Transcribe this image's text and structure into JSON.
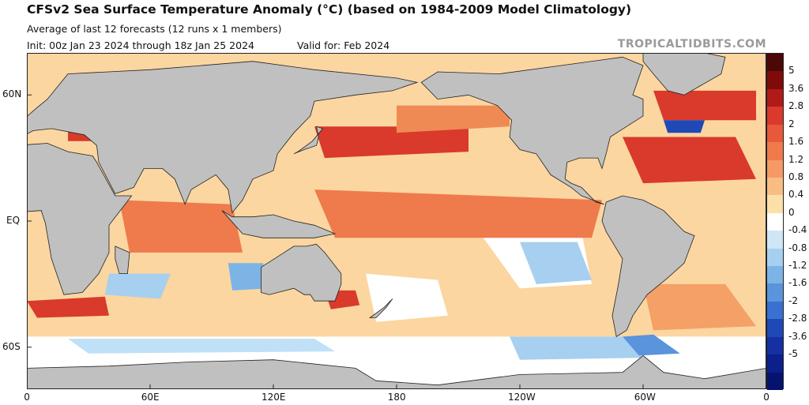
{
  "header": {
    "title": "CFSv2 Sea Surface Temperature Anomaly (°C) (based on 1984-2009 Model Climatology)",
    "subtitle_1": "Average of last 12 forecasts (12 runs x 1 members)",
    "subtitle_2": "Init: 00z Jan 23 2024 through 18z Jan 25 2024",
    "valid": "Valid for: Feb 2024",
    "source": "TROPICALTIDBITS.COM"
  },
  "map": {
    "projection": "equirectangular",
    "lon_range": [
      0,
      360
    ],
    "lat_range": [
      -80,
      80
    ],
    "land_color": "#c0c0c0",
    "border_color": "#222222",
    "lat_labels": [
      {
        "text": "60N",
        "lat": 60
      },
      {
        "text": "EQ",
        "lat": 0
      },
      {
        "text": "60S",
        "lat": -60
      }
    ],
    "lon_labels": [
      {
        "text": "0",
        "lon": 0
      },
      {
        "text": "60E",
        "lon": 60
      },
      {
        "text": "120E",
        "lon": 120
      },
      {
        "text": "180",
        "lon": 180
      },
      {
        "text": "120W",
        "lon": 240
      },
      {
        "text": "60W",
        "lon": 300
      },
      {
        "text": "0",
        "lon": 360
      }
    ]
  },
  "colorbar": {
    "labels": [
      "5",
      "3.6",
      "2.8",
      "2",
      "1.6",
      "1.2",
      "0.8",
      "0.4",
      "0",
      "-0.4",
      "-0.8",
      "-1.2",
      "-1.6",
      "-2",
      "-2.8",
      "-3.6",
      "-5"
    ],
    "colors": [
      "#4a0806",
      "#7e0b0a",
      "#b21a17",
      "#d93a2b",
      "#e8583a",
      "#ef7a4c",
      "#f59a64",
      "#f9bd82",
      "#fde0a8",
      "#ffffff",
      "#cfe6f7",
      "#a7cff0",
      "#7db4e6",
      "#5a94dc",
      "#3a70cf",
      "#2049b8",
      "#1530a0",
      "#0c1f8a",
      "#06136e"
    ]
  },
  "features": [
    {
      "name": "ocean-background",
      "type": "rect",
      "lon0": 0,
      "lat0": 80,
      "lon1": 360,
      "lat1": -80,
      "color": "#fbd6a0"
    },
    {
      "name": "anomaly-south-white-band",
      "type": "poly",
      "color": "#ffffff",
      "coords": [
        [
          0,
          -55
        ],
        [
          360,
          -55
        ],
        [
          360,
          -80
        ],
        [
          0,
          -80
        ]
      ]
    },
    {
      "name": "anomaly-south-lightblue",
      "type": "poly",
      "color": "#bfe0f7",
      "coords": [
        [
          20,
          -56
        ],
        [
          140,
          -56
        ],
        [
          150,
          -62
        ],
        [
          30,
          -63
        ]
      ]
    },
    {
      "name": "anomaly-south-pacific-blue",
      "type": "poly",
      "color": "#a7cff0",
      "coords": [
        [
          235,
          -55
        ],
        [
          290,
          -55
        ],
        [
          300,
          -65
        ],
        [
          240,
          -66
        ]
      ]
    },
    {
      "name": "anomaly-drake-blue",
      "type": "poly",
      "color": "#5a94dc",
      "coords": [
        [
          290,
          -55
        ],
        [
          305,
          -54
        ],
        [
          318,
          -63
        ],
        [
          298,
          -64
        ]
      ]
    },
    {
      "name": "anomaly-s-atlantic-orange",
      "type": "poly",
      "color": "#f4a066",
      "coords": [
        [
          300,
          -30
        ],
        [
          340,
          -30
        ],
        [
          355,
          -50
        ],
        [
          305,
          -52
        ]
      ]
    },
    {
      "name": "anomaly-s-indian-blue",
      "type": "poly",
      "color": "#a7cff0",
      "coords": [
        [
          40,
          -25
        ],
        [
          70,
          -25
        ],
        [
          65,
          -37
        ],
        [
          38,
          -35
        ]
      ]
    },
    {
      "name": "anomaly-agulhas-red",
      "type": "poly",
      "color": "#d93a2b",
      "coords": [
        [
          0,
          -38
        ],
        [
          38,
          -36
        ],
        [
          40,
          -45
        ],
        [
          5,
          -46
        ]
      ]
    },
    {
      "name": "anomaly-sw-pacific-white",
      "type": "poly",
      "color": "#ffffff",
      "coords": [
        [
          165,
          -25
        ],
        [
          200,
          -28
        ],
        [
          205,
          -45
        ],
        [
          170,
          -48
        ]
      ]
    },
    {
      "name": "anomaly-se-pacific-white",
      "type": "poly",
      "color": "#ffffff",
      "coords": [
        [
          220,
          -5
        ],
        [
          270,
          -5
        ],
        [
          275,
          -30
        ],
        [
          240,
          -32
        ]
      ]
    },
    {
      "name": "anomaly-se-pacific-lightblue",
      "type": "poly",
      "color": "#a7cff0",
      "coords": [
        [
          240,
          -10
        ],
        [
          268,
          -10
        ],
        [
          275,
          -28
        ],
        [
          248,
          -30
        ]
      ]
    },
    {
      "name": "anomaly-sw-aus-blue",
      "type": "poly",
      "color": "#7db4e6",
      "coords": [
        [
          98,
          -20
        ],
        [
          115,
          -20
        ],
        [
          118,
          -32
        ],
        [
          100,
          -33
        ]
      ]
    },
    {
      "name": "anomaly-tasman-red",
      "type": "poly",
      "color": "#d93a2b",
      "coords": [
        [
          145,
          -33
        ],
        [
          160,
          -33
        ],
        [
          162,
          -40
        ],
        [
          148,
          -42
        ]
      ]
    },
    {
      "name": "anomaly-nino-band",
      "type": "poly",
      "color": "#e8583a",
      "coords": [
        [
          155,
          5
        ],
        [
          275,
          3
        ],
        [
          275,
          -2
        ],
        [
          160,
          -2
        ]
      ]
    },
    {
      "name": "anomaly-trop-pacific-warm",
      "type": "poly",
      "color": "#ef7a4c",
      "coords": [
        [
          140,
          15
        ],
        [
          280,
          10
        ],
        [
          275,
          -8
        ],
        [
          150,
          -8
        ]
      ]
    },
    {
      "name": "anomaly-indian-warm",
      "type": "poly",
      "color": "#ef7a4c",
      "coords": [
        [
          45,
          10
        ],
        [
          100,
          8
        ],
        [
          105,
          -15
        ],
        [
          50,
          -15
        ]
      ]
    },
    {
      "name": "anomaly-kuroshio-red",
      "type": "poly",
      "color": "#d93a2b",
      "coords": [
        [
          140,
          45
        ],
        [
          215,
          45
        ],
        [
          215,
          33
        ],
        [
          145,
          30
        ]
      ]
    },
    {
      "name": "anomaly-n-pacific-orange",
      "type": "poly",
      "color": "#f08a55",
      "coords": [
        [
          180,
          55
        ],
        [
          235,
          55
        ],
        [
          235,
          45
        ],
        [
          180,
          42
        ]
      ]
    },
    {
      "name": "anomaly-n-atlantic-red",
      "type": "poly",
      "color": "#d93a2b",
      "coords": [
        [
          290,
          40
        ],
        [
          345,
          40
        ],
        [
          355,
          20
        ],
        [
          300,
          18
        ]
      ]
    },
    {
      "name": "anomaly-subpolar-red",
      "type": "poly",
      "color": "#d93a2b",
      "coords": [
        [
          305,
          62
        ],
        [
          355,
          62
        ],
        [
          355,
          48
        ],
        [
          310,
          48
        ]
      ]
    },
    {
      "name": "anomaly-nw-atlantic-blue",
      "type": "poly",
      "color": "#2049b8",
      "coords": [
        [
          310,
          48
        ],
        [
          330,
          48
        ],
        [
          328,
          42
        ],
        [
          312,
          42
        ]
      ]
    },
    {
      "name": "anomaly-med-red",
      "type": "poly",
      "color": "#d93a2b",
      "coords": [
        [
          20,
          46
        ],
        [
          45,
          46
        ],
        [
          45,
          38
        ],
        [
          20,
          38
        ]
      ]
    },
    {
      "name": "land-antarctica",
      "type": "poly",
      "color": "#c0c0c0",
      "coords": [
        [
          0,
          -70
        ],
        [
          40,
          -69
        ],
        [
          80,
          -67
        ],
        [
          120,
          -66
        ],
        [
          160,
          -70
        ],
        [
          170,
          -76
        ],
        [
          200,
          -78
        ],
        [
          240,
          -73
        ],
        [
          290,
          -72
        ],
        [
          300,
          -64
        ],
        [
          310,
          -72
        ],
        [
          330,
          -75
        ],
        [
          360,
          -70
        ],
        [
          360,
          -80
        ],
        [
          0,
          -80
        ]
      ]
    },
    {
      "name": "land-africa",
      "type": "poly",
      "color": "#c0c0c0",
      "coords": [
        [
          -17,
          15
        ],
        [
          -10,
          27
        ],
        [
          -5,
          36
        ],
        [
          10,
          37
        ],
        [
          20,
          33
        ],
        [
          32,
          31
        ],
        [
          34,
          28
        ],
        [
          43,
          12
        ],
        [
          51,
          12
        ],
        [
          40,
          -2
        ],
        [
          40,
          -15
        ],
        [
          35,
          -25
        ],
        [
          27,
          -34
        ],
        [
          18,
          -35
        ],
        [
          12,
          -18
        ],
        [
          9,
          -1
        ],
        [
          7,
          5
        ],
        [
          -8,
          4
        ],
        [
          -17,
          15
        ]
      ]
    },
    {
      "name": "land-eurasia",
      "type": "poly",
      "color": "#c0c0c0",
      "coords": [
        [
          -10,
          36
        ],
        [
          -9,
          44
        ],
        [
          -2,
          48
        ],
        [
          5,
          54
        ],
        [
          10,
          58
        ],
        [
          20,
          70
        ],
        [
          60,
          72
        ],
        [
          110,
          76
        ],
        [
          140,
          72
        ],
        [
          180,
          68
        ],
        [
          190,
          66
        ],
        [
          178,
          62
        ],
        [
          160,
          60
        ],
        [
          140,
          57
        ],
        [
          138,
          50
        ],
        [
          130,
          42
        ],
        [
          122,
          32
        ],
        [
          120,
          24
        ],
        [
          110,
          20
        ],
        [
          105,
          10
        ],
        [
          100,
          4
        ],
        [
          98,
          15
        ],
        [
          92,
          22
        ],
        [
          80,
          15
        ],
        [
          77,
          8
        ],
        [
          72,
          20
        ],
        [
          66,
          25
        ],
        [
          57,
          25
        ],
        [
          52,
          16
        ],
        [
          43,
          13
        ],
        [
          35,
          28
        ],
        [
          34,
          36
        ],
        [
          28,
          41
        ],
        [
          12,
          44
        ],
        [
          3,
          43
        ],
        [
          -10,
          36
        ]
      ]
    },
    {
      "name": "land-japan",
      "type": "poly",
      "color": "#c0c0c0",
      "coords": [
        [
          130,
          32
        ],
        [
          135,
          34
        ],
        [
          141,
          36
        ],
        [
          142,
          40
        ],
        [
          141,
          45
        ],
        [
          144,
          44
        ],
        [
          139,
          38
        ],
        [
          132,
          33
        ]
      ]
    },
    {
      "name": "land-australia",
      "type": "poly",
      "color": "#c0c0c0",
      "coords": [
        [
          114,
          -22
        ],
        [
          114,
          -34
        ],
        [
          118,
          -35
        ],
        [
          130,
          -32
        ],
        [
          135,
          -35
        ],
        [
          138,
          -35
        ],
        [
          140,
          -38
        ],
        [
          150,
          -38
        ],
        [
          153,
          -30
        ],
        [
          153,
          -25
        ],
        [
          145,
          -15
        ],
        [
          141,
          -11
        ],
        [
          136,
          -12
        ],
        [
          130,
          -12
        ],
        [
          122,
          -17
        ],
        [
          114,
          -22
        ]
      ]
    },
    {
      "name": "land-north-america",
      "type": "poly",
      "color": "#c0c0c0",
      "coords": [
        [
          192,
          66
        ],
        [
          200,
          71
        ],
        [
          230,
          70
        ],
        [
          260,
          74
        ],
        [
          290,
          78
        ],
        [
          300,
          74
        ],
        [
          295,
          60
        ],
        [
          300,
          58
        ],
        [
          300,
          50
        ],
        [
          292,
          45
        ],
        [
          284,
          40
        ],
        [
          282,
          32
        ],
        [
          280,
          25
        ],
        [
          278,
          30
        ],
        [
          269,
          30
        ],
        [
          263,
          28
        ],
        [
          262,
          20
        ],
        [
          265,
          18
        ],
        [
          270,
          16
        ],
        [
          277,
          9
        ],
        [
          281,
          8
        ],
        [
          270,
          12
        ],
        [
          265,
          16
        ],
        [
          255,
          22
        ],
        [
          248,
          32
        ],
        [
          240,
          34
        ],
        [
          235,
          40
        ],
        [
          236,
          48
        ],
        [
          229,
          55
        ],
        [
          215,
          60
        ],
        [
          200,
          58
        ],
        [
          192,
          66
        ]
      ]
    },
    {
      "name": "land-greenland",
      "type": "poly",
      "color": "#c0c0c0",
      "coords": [
        [
          300,
          82
        ],
        [
          320,
          82
        ],
        [
          340,
          78
        ],
        [
          338,
          70
        ],
        [
          320,
          60
        ],
        [
          312,
          62
        ],
        [
          305,
          70
        ],
        [
          300,
          76
        ]
      ]
    },
    {
      "name": "land-south-america",
      "type": "poly",
      "color": "#c0c0c0",
      "coords": [
        [
          282,
          9
        ],
        [
          290,
          12
        ],
        [
          300,
          10
        ],
        [
          310,
          5
        ],
        [
          320,
          -5
        ],
        [
          325,
          -7
        ],
        [
          320,
          -20
        ],
        [
          312,
          -27
        ],
        [
          302,
          -35
        ],
        [
          295,
          -45
        ],
        [
          292,
          -52
        ],
        [
          287,
          -55
        ],
        [
          285,
          -45
        ],
        [
          288,
          -30
        ],
        [
          290,
          -18
        ],
        [
          282,
          -5
        ],
        [
          280,
          0
        ],
        [
          282,
          9
        ]
      ]
    },
    {
      "name": "land-madagascar",
      "type": "poly",
      "color": "#c0c0c0",
      "coords": [
        [
          43,
          -12
        ],
        [
          50,
          -15
        ],
        [
          49,
          -25
        ],
        [
          45,
          -25
        ],
        [
          43,
          -18
        ]
      ]
    },
    {
      "name": "land-indonesia",
      "type": "poly",
      "color": "#c0c0c0",
      "coords": [
        [
          95,
          5
        ],
        [
          105,
          -6
        ],
        [
          115,
          -8
        ],
        [
          125,
          -8
        ],
        [
          140,
          -8
        ],
        [
          150,
          -6
        ],
        [
          140,
          -2
        ],
        [
          130,
          0
        ],
        [
          120,
          3
        ],
        [
          110,
          2
        ],
        [
          100,
          2
        ]
      ]
    },
    {
      "name": "land-new-zealand",
      "type": "poly",
      "color": "#c0c0c0",
      "coords": [
        [
          167,
          -46
        ],
        [
          174,
          -41
        ],
        [
          178,
          -37
        ],
        [
          175,
          -41
        ],
        [
          170,
          -46
        ]
      ]
    }
  ]
}
